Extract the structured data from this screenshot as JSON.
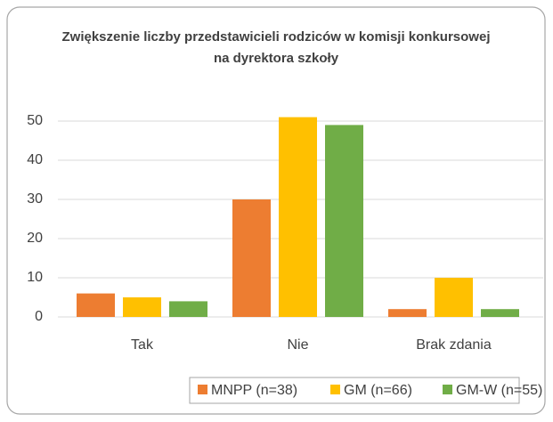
{
  "chart_data": {
    "type": "bar",
    "title": "Zwiększenie liczby przedstawicieli rodziców w komisji konkursowej na dyrektora szkoły",
    "categories": [
      "Tak",
      "Nie",
      "Brak zdania"
    ],
    "series": [
      {
        "name": "MNPP (n=38)",
        "color": "#ed7d31",
        "values": [
          6,
          30,
          2
        ]
      },
      {
        "name": "GM (n=66)",
        "color": "#ffc000",
        "values": [
          5,
          51,
          10
        ]
      },
      {
        "name": "GM-W (n=55)",
        "color": "#70ad47",
        "values": [
          4,
          49,
          2
        ]
      }
    ],
    "ylim": [
      0,
      50
    ],
    "yticks": [
      0,
      10,
      20,
      30,
      40,
      50
    ],
    "grid": true,
    "legend": "bottom"
  }
}
